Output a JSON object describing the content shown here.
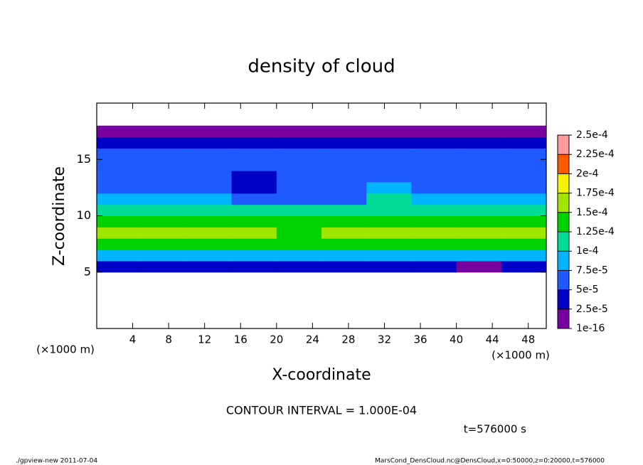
{
  "chart_data": {
    "type": "contour",
    "title": "density of cloud",
    "xlabel": "X-coordinate",
    "ylabel": "Z-coordinate",
    "x_unit": "(×1000 m)",
    "y_unit": "(×1000 m)",
    "contour_interval_text": "CONTOUR INTERVAL = 1.000E-04",
    "time_text": "t=576000 s",
    "footer_left": "./gpview-new  2011-07-04",
    "footer_right": "MarsCond_DensCloud.nc@DensCloud,x=0:50000,z=0:20000,t=576000",
    "xlim": [
      0,
      50
    ],
    "ylim": [
      0,
      20
    ],
    "xticks": [
      4,
      8,
      12,
      16,
      20,
      24,
      28,
      32,
      36,
      40,
      44,
      48
    ],
    "yticks": [
      5,
      10,
      15
    ],
    "x": [
      2.5,
      7.5,
      12.5,
      17.5,
      22.5,
      27.5,
      32.5,
      37.5,
      42.5,
      47.5
    ],
    "z": [
      5.5,
      6.5,
      7.5,
      8.5,
      9.5,
      10.5,
      11.5,
      12.5,
      13.5,
      14.5,
      15.5,
      16.5,
      17.5
    ],
    "values": [
      [
        3.5e-05,
        3e-05,
        3e-05,
        2.5e-05,
        3e-05,
        3e-05,
        3.5e-05,
        3e-05,
        2e-05,
        3e-05
      ],
      [
        9e-05,
        9.5e-05,
        9e-05,
        8.5e-05,
        9e-05,
        9.5e-05,
        9e-05,
        9e-05,
        8.5e-05,
        9e-05
      ],
      [
        0.00013,
        0.000135,
        0.00014,
        0.00013,
        0.000125,
        0.00013,
        0.000135,
        0.00013,
        0.00014,
        0.000135
      ],
      [
        0.00015,
        0.000155,
        0.00016,
        0.00015,
        0.000145,
        0.00015,
        0.000155,
        0.000155,
        0.00017,
        0.00016
      ],
      [
        0.00014,
        0.000145,
        0.00014,
        0.00013,
        0.00013,
        0.000135,
        0.00014,
        0.00014,
        0.000145,
        0.00014
      ],
      [
        0.00011,
        0.00011,
        0.000105,
        0.0001,
        0.0001,
        0.000105,
        0.00012,
        0.00011,
        0.00011,
        0.00011
      ],
      [
        8e-05,
        8e-05,
        7.5e-05,
        6e-05,
        6.5e-05,
        7e-05,
        0.0001,
        8e-05,
        8e-05,
        8e-05
      ],
      [
        6.5e-05,
        6.5e-05,
        6e-05,
        4.5e-05,
        5e-05,
        6e-05,
        8e-05,
        7e-05,
        6.5e-05,
        6.5e-05
      ],
      [
        6.5e-05,
        6e-05,
        5.5e-05,
        4.5e-05,
        5e-05,
        5.5e-05,
        6.5e-05,
        6.5e-05,
        6e-05,
        6e-05
      ],
      [
        6e-05,
        6e-05,
        5.5e-05,
        5e-05,
        5e-05,
        5.5e-05,
        6e-05,
        6e-05,
        6e-05,
        6e-05
      ],
      [
        5.5e-05,
        5.5e-05,
        5e-05,
        5e-05,
        5e-05,
        5e-05,
        5.5e-05,
        5.5e-05,
        5e-05,
        5.5e-05
      ],
      [
        3e-05,
        3e-05,
        3e-05,
        3e-05,
        3e-05,
        3e-05,
        3e-05,
        3e-05,
        3e-05,
        3e-05
      ],
      [
        1e-05,
        1e-05,
        1e-05,
        1e-05,
        1e-05,
        1e-05,
        1e-05,
        1e-05,
        8e-06,
        1e-05
      ]
    ],
    "levels": [
      1e-16,
      {
        "value": 2.5e-05,
        "label": "2.5e-5"
      },
      {
        "value": 5e-05,
        "label": "5e-5"
      },
      {
        "value": 7.5e-05,
        "label": "7.5e-5"
      },
      {
        "value": 0.0001,
        "label": "1e-4"
      },
      {
        "value": 0.000125,
        "label": "1.25e-4"
      },
      {
        "value": 0.00015,
        "label": "1.5e-4"
      },
      {
        "value": 0.000175,
        "label": "1.75e-4"
      },
      {
        "value": 0.0002,
        "label": "2e-4"
      },
      {
        "value": 0.000225,
        "label": "2.25e-4"
      },
      {
        "value": 0.00025,
        "label": "2.5e-4"
      }
    ],
    "colors": [
      "#7800a0",
      "#0000c8",
      "#1e5aff",
      "#00b4ff",
      "#00dc96",
      "#00d200",
      "#a0e600",
      "#f5f000",
      "#ff5a00",
      "#ff9a9a"
    ]
  }
}
